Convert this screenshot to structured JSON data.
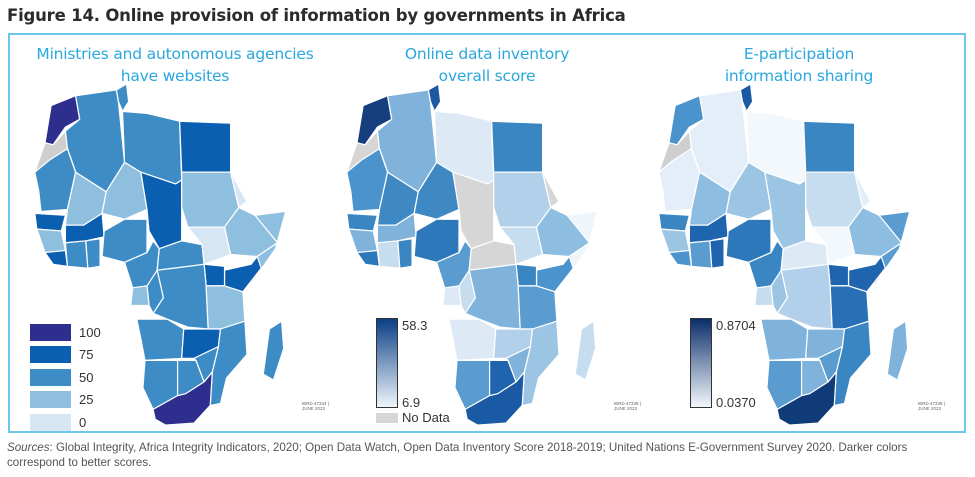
{
  "figure": {
    "title": "Figure 14. Online provision of information by governments in Africa",
    "frame_color": "#6cc7ec",
    "title_color": "#2aa7dd"
  },
  "panels": [
    {
      "title_line1": "Ministries and autonomous agencies",
      "title_line2": "have websites",
      "legend_type": "categorical",
      "legend": [
        {
          "label": "100",
          "color": "#2e2e8f"
        },
        {
          "label": "75",
          "color": "#0a5fb0"
        },
        {
          "label": "50",
          "color": "#3d8cc6"
        },
        {
          "label": "25",
          "color": "#8fbfdf"
        },
        {
          "label": "0",
          "color": "#d6e7f3"
        }
      ],
      "ibrd_line1": "IBRD 47334 |",
      "ibrd_line2": "JUNE 2023"
    },
    {
      "title_line1": "Online data inventory",
      "title_line2": "overall score",
      "legend_type": "gradient",
      "legend_max": "58.3",
      "legend_min": "6.9",
      "no_data_label": "No Data",
      "gradient": {
        "dark": "#0b3f86",
        "light": "#eef5fb"
      },
      "no_data_color": "#d6d6d6",
      "ibrd_line1": "IBRD 47335 |",
      "ibrd_line2": "JUNE 2023"
    },
    {
      "title_line1": "E-participation",
      "title_line2": "information sharing",
      "legend_type": "gradient",
      "legend_max": "0.8704",
      "legend_min": "0.0370",
      "gradient": {
        "dark": "#0b2e6a",
        "light": "#f3f8fc"
      },
      "ibrd_line1": "IBRD 47336 |",
      "ibrd_line2": "JUNE 2023"
    }
  ],
  "regions": {
    "names": [
      "morocco",
      "w-sahara",
      "algeria",
      "tunisia",
      "libya",
      "egypt",
      "mauritania",
      "mali",
      "niger",
      "chad",
      "sudan",
      "senegal",
      "guinea",
      "cote-divoire",
      "ghana",
      "burkina",
      "nigeria",
      "cameroon",
      "car",
      "s-sudan",
      "ethiopia",
      "somalia",
      "kenya",
      "uganda",
      "drc",
      "congo",
      "gabon",
      "tanzania",
      "angola",
      "zambia",
      "mozambique",
      "namibia",
      "botswana",
      "zimbabwe",
      "south-africa",
      "madagascar",
      "eritrea",
      "liberia"
    ],
    "map1": [
      "#2e2e8f",
      "#cfcfcf",
      "#3d8cc6",
      "#3d8cc6",
      "#3d8cc6",
      "#0a5fb0",
      "#3d8cc6",
      "#8fbfdf",
      "#8fbfdf",
      "#0a5fb0",
      "#8fbfdf",
      "#0a5fb0",
      "#8fbfdf",
      "#3d8cc6",
      "#3d8cc6",
      "#0a5fb0",
      "#3d8cc6",
      "#3d8cc6",
      "#3d8cc6",
      "#d6e7f3",
      "#8fbfdf",
      "#8fbfdf",
      "#0a5fb0",
      "#0a5fb0",
      "#3d8cc6",
      "#3d8cc6",
      "#8fbfdf",
      "#8fbfdf",
      "#3d8cc6",
      "#0a5fb0",
      "#3d8cc6",
      "#3d8cc6",
      "#3d8cc6",
      "#3d8cc6",
      "#2e2e8f",
      "#3d8cc6",
      "#d6e7f3",
      "#0a5fb0"
    ],
    "map2": [
      "#163f7e",
      "#d6d6d6",
      "#7fb3db",
      "#1b59a3",
      "#dde9f5",
      "#3a86c3",
      "#4a93cc",
      "#3e88c4",
      "#3e88c4",
      "#d6d6d6",
      "#b3d0ea",
      "#3a86c3",
      "#7fb3db",
      "#c6dcef",
      "#3a86c3",
      "#7fb3db",
      "#2d78ba",
      "#5a9ccf",
      "#d6d6d6",
      "#c6dcef",
      "#8dbde0",
      "#eef5fb",
      "#4a93cc",
      "#3a86c3",
      "#7fb3db",
      "#c6dcef",
      "#dde9f5",
      "#5a9ccf",
      "#dde9f5",
      "#b3d0ea",
      "#9cc5e4",
      "#5a9ccf",
      "#1e64ae",
      "#7fb3db",
      "#1a5aa5",
      "#c6dcef",
      "#d6d6d6",
      "#2d78ba"
    ],
    "map3": [
      "#4a93cc",
      "#cfcfcf",
      "#e3eef8",
      "#1a5aa5",
      "#f3f8fc",
      "#3a86c3",
      "#e3eef8",
      "#8dbde0",
      "#9cc5e4",
      "#9cc5e4",
      "#c6dcef",
      "#3a86c3",
      "#9cc5e4",
      "#5a9ccf",
      "#1e64ae",
      "#1e64ae",
      "#2d78ba",
      "#3a86c3",
      "#dde9f5",
      "#f3f8fc",
      "#8dbde0",
      "#5a9ccf",
      "#1e64ae",
      "#1e64ae",
      "#b3d0ea",
      "#9cc5e4",
      "#c6dcef",
      "#2770b6",
      "#7fb3db",
      "#7fb3db",
      "#3a86c3",
      "#5a9ccf",
      "#7fb3db",
      "#5a9ccf",
      "#0f3b78",
      "#7fb3db",
      "#e3eef8",
      "#4a93cc"
    ]
  },
  "sources": {
    "label": "Sources",
    "text": ": Global Integrity, Africa Integrity Indicators, 2020; Open Data Watch, Open Data Inventory Score 2018-2019; United Nations E-Government Survey 2020. Darker colors correspond to better scores."
  }
}
